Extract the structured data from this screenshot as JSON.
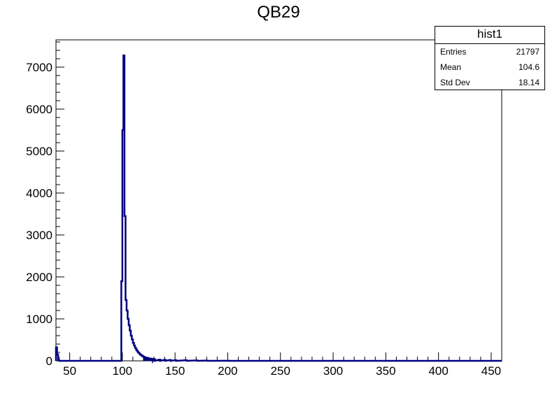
{
  "chart_data": {
    "type": "histogram",
    "title": "QB29",
    "xlabel": "",
    "ylabel": "",
    "xlim": [
      37,
      460
    ],
    "ylim": [
      0,
      7650
    ],
    "x_ticks": [
      50,
      100,
      150,
      200,
      250,
      300,
      350,
      400,
      450
    ],
    "y_ticks": [
      0,
      1000,
      2000,
      3000,
      4000,
      5000,
      6000,
      7000
    ],
    "bin_width": 1,
    "line_color": "#000080",
    "bins": [
      {
        "x": 37,
        "y": 320
      },
      {
        "x": 38,
        "y": 150
      },
      {
        "x": 39,
        "y": 20
      },
      {
        "x": 98,
        "y": 0
      },
      {
        "x": 99,
        "y": 1900
      },
      {
        "x": 100,
        "y": 5500
      },
      {
        "x": 101,
        "y": 7280
      },
      {
        "x": 102,
        "y": 3450
      },
      {
        "x": 103,
        "y": 1450
      },
      {
        "x": 104,
        "y": 1200
      },
      {
        "x": 105,
        "y": 1000
      },
      {
        "x": 106,
        "y": 850
      },
      {
        "x": 107,
        "y": 720
      },
      {
        "x": 108,
        "y": 600
      },
      {
        "x": 109,
        "y": 510
      },
      {
        "x": 110,
        "y": 430
      },
      {
        "x": 111,
        "y": 365
      },
      {
        "x": 112,
        "y": 310
      },
      {
        "x": 113,
        "y": 265
      },
      {
        "x": 114,
        "y": 225
      },
      {
        "x": 115,
        "y": 195
      },
      {
        "x": 116,
        "y": 168
      },
      {
        "x": 117,
        "y": 145
      },
      {
        "x": 118,
        "y": 126
      },
      {
        "x": 119,
        "y": 110
      },
      {
        "x": 120,
        "y": 96
      },
      {
        "x": 122,
        "y": 80
      },
      {
        "x": 124,
        "y": 66
      },
      {
        "x": 126,
        "y": 55
      },
      {
        "x": 128,
        "y": 47
      },
      {
        "x": 130,
        "y": 40
      },
      {
        "x": 135,
        "y": 30
      },
      {
        "x": 140,
        "y": 24
      },
      {
        "x": 145,
        "y": 20
      },
      {
        "x": 150,
        "y": 16
      },
      {
        "x": 160,
        "y": 14
      },
      {
        "x": 170,
        "y": 10
      },
      {
        "x": 180,
        "y": 6
      },
      {
        "x": 200,
        "y": 3
      },
      {
        "x": 250,
        "y": 1
      },
      {
        "x": 300,
        "y": 0
      }
    ]
  },
  "stats": {
    "name": "hist1",
    "rows": [
      {
        "label": "Entries",
        "value": "21797"
      },
      {
        "label": "Mean",
        "value": "104.6"
      },
      {
        "label": "Std Dev",
        "value": "18.14"
      }
    ]
  }
}
